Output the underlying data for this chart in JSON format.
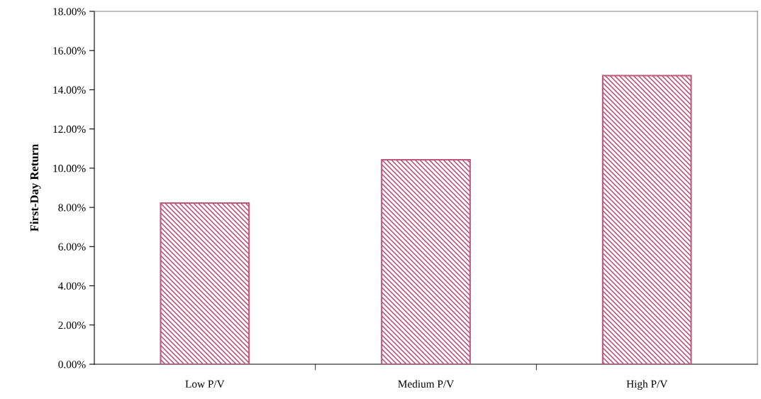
{
  "chart_data": {
    "type": "bar",
    "ylabel": "First-Day Return",
    "categories": [
      "Low P/V",
      "Medium P/V",
      "High P/V"
    ],
    "values": [
      8.22,
      10.43,
      14.72
    ],
    "color": "#c0587a",
    "ylim": [
      0,
      18
    ],
    "yticks": [
      {
        "value": 0,
        "label": "0.00%"
      },
      {
        "value": 2,
        "label": "2.00%"
      },
      {
        "value": 4,
        "label": "4.00%"
      },
      {
        "value": 6,
        "label": "6.00%"
      },
      {
        "value": 8,
        "label": "8.00%"
      },
      {
        "value": 10,
        "label": "10.00%"
      },
      {
        "value": 12,
        "label": "12.00%"
      },
      {
        "value": 14,
        "label": "14.00%"
      },
      {
        "value": 16,
        "label": "16.00%"
      },
      {
        "value": 18,
        "label": "18.00%"
      }
    ],
    "grid": false,
    "legend": false
  }
}
